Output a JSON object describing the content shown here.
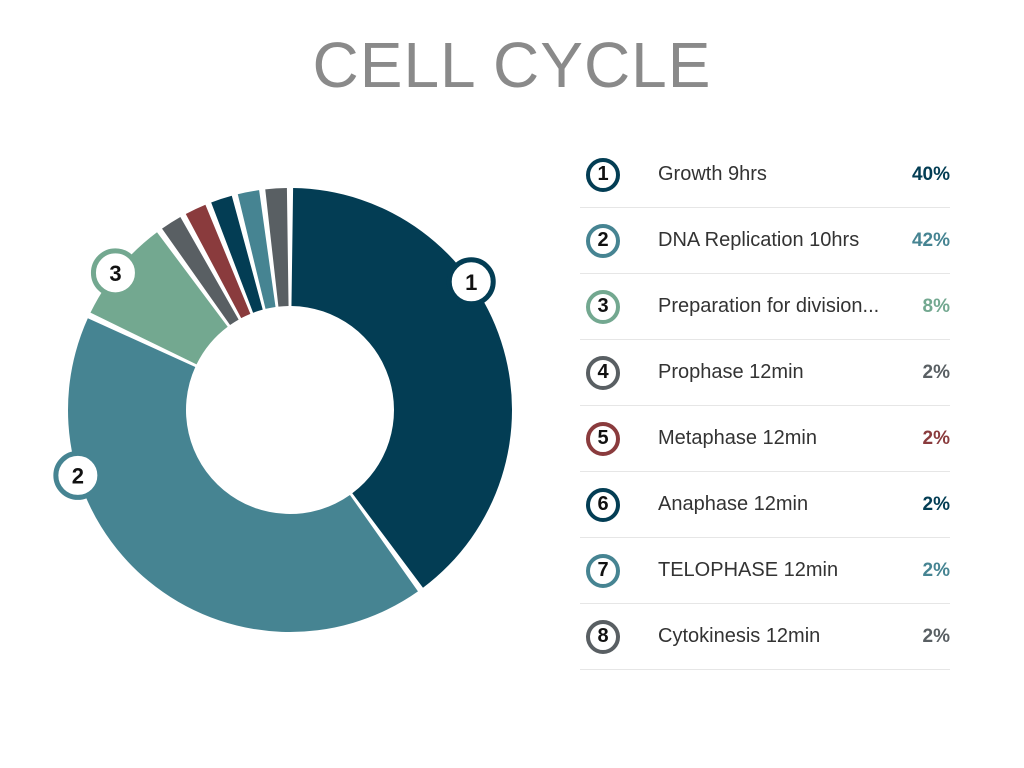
{
  "title": "CELL CYCLE",
  "chart_data": {
    "type": "pie",
    "title": "CELL CYCLE",
    "slices": [
      {
        "id": "1",
        "label": "Growth 9hrs",
        "value": 40,
        "value_label": "40%",
        "color": "#033d54"
      },
      {
        "id": "2",
        "label": "DNA Replication 10hrs",
        "value": 42,
        "value_label": "42%",
        "color": "#468492"
      },
      {
        "id": "3",
        "label": "Preparation for division...",
        "value": 8,
        "value_label": "8%",
        "color": "#73a890"
      },
      {
        "id": "4",
        "label": "Prophase 12min",
        "value": 2,
        "value_label": "2%",
        "color": "#595f63"
      },
      {
        "id": "5",
        "label": "Metaphase 12min",
        "value": 2,
        "value_label": "2%",
        "color": "#8a3b3d"
      },
      {
        "id": "6",
        "label": "Anaphase 12min",
        "value": 2,
        "value_label": "2%",
        "color": "#033d54"
      },
      {
        "id": "7",
        "label": "TELOPHASE 12min",
        "value": 2,
        "value_label": "2%",
        "color": "#468492"
      },
      {
        "id": "8",
        "label": "Cytokinesis 12min",
        "value": 2,
        "value_label": "2%",
        "color": "#595f63"
      }
    ],
    "badged_slices": [
      "1",
      "2",
      "3"
    ]
  }
}
